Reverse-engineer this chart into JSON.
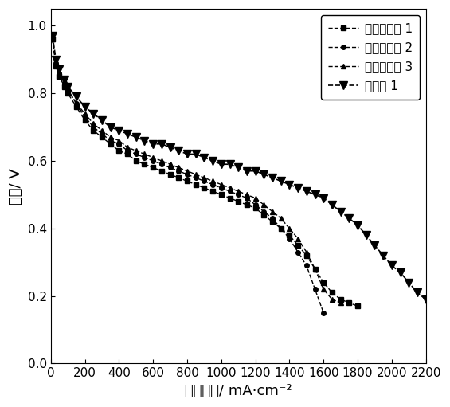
{
  "title": "",
  "xlabel": "电流密度/ mA·cm⁻²",
  "ylabel": "电压/ V",
  "xlim": [
    0,
    2200
  ],
  "ylim": [
    0.0,
    1.05
  ],
  "xticks": [
    0,
    200,
    400,
    600,
    800,
    1000,
    1200,
    1400,
    1600,
    1800,
    2000,
    2200
  ],
  "yticks": [
    0.0,
    0.2,
    0.4,
    0.6,
    0.8,
    1.0
  ],
  "legend_labels": [
    "对比实施例 1",
    "对比实施例 2",
    "对比实施例 3",
    "实施例 1"
  ],
  "series1_x": [
    10,
    30,
    50,
    80,
    100,
    150,
    200,
    250,
    300,
    350,
    400,
    450,
    500,
    550,
    600,
    650,
    700,
    750,
    800,
    850,
    900,
    950,
    1000,
    1050,
    1100,
    1150,
    1200,
    1250,
    1300,
    1350,
    1400,
    1450,
    1500,
    1550,
    1600,
    1650,
    1700,
    1750,
    1800
  ],
  "series1_y": [
    0.96,
    0.88,
    0.85,
    0.82,
    0.8,
    0.76,
    0.72,
    0.69,
    0.67,
    0.65,
    0.63,
    0.62,
    0.6,
    0.59,
    0.58,
    0.57,
    0.56,
    0.55,
    0.54,
    0.53,
    0.52,
    0.51,
    0.5,
    0.49,
    0.48,
    0.47,
    0.46,
    0.44,
    0.42,
    0.4,
    0.38,
    0.35,
    0.32,
    0.28,
    0.24,
    0.21,
    0.19,
    0.18,
    0.17
  ],
  "series2_x": [
    10,
    30,
    50,
    80,
    100,
    150,
    200,
    250,
    300,
    350,
    400,
    450,
    500,
    550,
    600,
    650,
    700,
    750,
    800,
    850,
    900,
    950,
    1000,
    1050,
    1100,
    1150,
    1200,
    1250,
    1300,
    1350,
    1400,
    1450,
    1500,
    1550,
    1600
  ],
  "series2_y": [
    0.96,
    0.89,
    0.86,
    0.83,
    0.81,
    0.77,
    0.73,
    0.7,
    0.68,
    0.66,
    0.65,
    0.63,
    0.62,
    0.61,
    0.6,
    0.59,
    0.58,
    0.57,
    0.56,
    0.55,
    0.54,
    0.53,
    0.52,
    0.51,
    0.5,
    0.49,
    0.47,
    0.45,
    0.43,
    0.4,
    0.37,
    0.33,
    0.29,
    0.22,
    0.15
  ],
  "series3_x": [
    10,
    30,
    50,
    80,
    100,
    150,
    200,
    250,
    300,
    350,
    400,
    450,
    500,
    550,
    600,
    650,
    700,
    750,
    800,
    850,
    900,
    950,
    1000,
    1050,
    1100,
    1150,
    1200,
    1250,
    1300,
    1350,
    1400,
    1450,
    1500,
    1550,
    1600,
    1650,
    1700
  ],
  "series3_y": [
    0.96,
    0.89,
    0.86,
    0.83,
    0.81,
    0.77,
    0.74,
    0.71,
    0.69,
    0.67,
    0.66,
    0.64,
    0.63,
    0.62,
    0.61,
    0.6,
    0.59,
    0.58,
    0.57,
    0.56,
    0.55,
    0.54,
    0.53,
    0.52,
    0.51,
    0.5,
    0.49,
    0.47,
    0.45,
    0.43,
    0.4,
    0.37,
    0.33,
    0.28,
    0.22,
    0.19,
    0.18
  ],
  "series4_x": [
    10,
    30,
    50,
    80,
    100,
    150,
    200,
    250,
    300,
    350,
    400,
    450,
    500,
    550,
    600,
    650,
    700,
    750,
    800,
    850,
    900,
    950,
    1000,
    1050,
    1100,
    1150,
    1200,
    1250,
    1300,
    1350,
    1400,
    1450,
    1500,
    1550,
    1600,
    1650,
    1700,
    1750,
    1800,
    1850,
    1900,
    1950,
    2000,
    2050,
    2100,
    2150,
    2200
  ],
  "series4_y": [
    0.97,
    0.9,
    0.87,
    0.84,
    0.82,
    0.79,
    0.76,
    0.74,
    0.72,
    0.7,
    0.69,
    0.68,
    0.67,
    0.66,
    0.65,
    0.65,
    0.64,
    0.63,
    0.62,
    0.62,
    0.61,
    0.6,
    0.59,
    0.59,
    0.58,
    0.57,
    0.57,
    0.56,
    0.55,
    0.54,
    0.53,
    0.52,
    0.51,
    0.5,
    0.49,
    0.47,
    0.45,
    0.43,
    0.41,
    0.38,
    0.35,
    0.32,
    0.29,
    0.27,
    0.24,
    0.21,
    0.19
  ],
  "line_color": "#000000",
  "background_color": "#ffffff",
  "legend_fontsize": 11,
  "axis_fontsize": 13,
  "tick_fontsize": 11
}
